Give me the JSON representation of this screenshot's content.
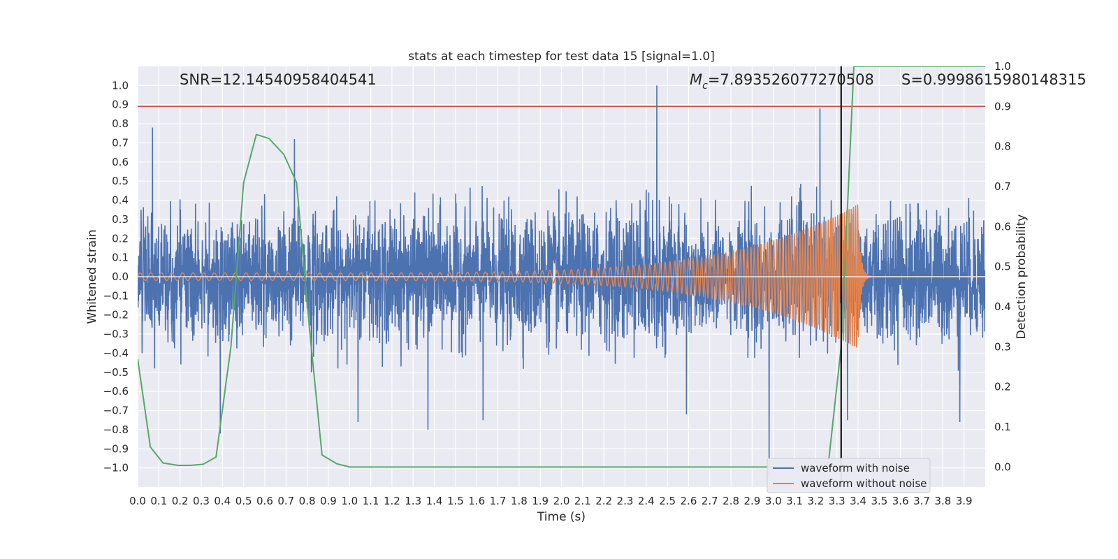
{
  "chart_data": {
    "type": "line",
    "title": "stats at each timestep for test data 15 [signal=1.0]",
    "xlabel": "Time (s)",
    "ylabel": "Whitened strain",
    "y2label": "Detection probability",
    "xlim": [
      0.0,
      4.0
    ],
    "ylim": [
      -1.1,
      1.1
    ],
    "y2lim": [
      -0.05,
      1.0
    ],
    "x_ticks": [
      0.0,
      0.1,
      0.2,
      0.3,
      0.4,
      0.5,
      0.6,
      0.7,
      0.8,
      0.9,
      1.0,
      1.1,
      1.2,
      1.3,
      1.4,
      1.5,
      1.6,
      1.7,
      1.8,
      1.9,
      2.0,
      2.1,
      2.2,
      2.3,
      2.4,
      2.5,
      2.6,
      2.7,
      2.8,
      2.9,
      3.0,
      3.1,
      3.2,
      3.3,
      3.4,
      3.5,
      3.6,
      3.7,
      3.8,
      3.9
    ],
    "y_ticks": [
      1.0,
      0.9,
      0.8,
      0.7,
      0.6,
      0.5,
      0.4,
      0.3,
      0.2,
      0.1,
      0.0,
      -0.1,
      -0.2,
      -0.3,
      -0.4,
      -0.5,
      -0.6,
      -0.7,
      -0.8,
      -0.9,
      -1.0
    ],
    "y2_ticks": [
      1.0,
      0.9,
      0.8,
      0.7,
      0.6,
      0.5,
      0.4,
      0.3,
      0.2,
      0.1,
      0.0
    ],
    "grid": true,
    "legend_position": "lower-right",
    "annotations": {
      "snr": "SNR=12.14540958404541",
      "mc_symbol": "M",
      "mc_sub": "c",
      "mc_value": "=7.893526077270508",
      "s": "S=0.9998615980148315"
    },
    "threshold": {
      "y2": 0.9,
      "color": "#c44e52"
    },
    "merger_time": 3.32,
    "series": [
      {
        "name": "waveform with noise",
        "color": "#4c72b0",
        "axis": "left",
        "style": "dense noise trace",
        "amplitude_envelope": 0.5,
        "spikes": [
          [
            0.07,
            0.78
          ],
          [
            0.39,
            -0.82
          ],
          [
            0.74,
            0.72
          ],
          [
            0.82,
            -0.5
          ],
          [
            1.04,
            -0.76
          ],
          [
            1.37,
            -0.8
          ],
          [
            1.63,
            -0.75
          ],
          [
            2.45,
            1.0
          ],
          [
            2.59,
            -0.72
          ],
          [
            2.98,
            -1.05
          ],
          [
            3.22,
            0.88
          ],
          [
            3.35,
            -0.75
          ],
          [
            3.88,
            -0.76
          ]
        ]
      },
      {
        "name": "waveform without noise",
        "color": "#dd8452",
        "axis": "left",
        "style": "chirp",
        "f_start_hz": 20,
        "f_end_hz": 100,
        "amp_start": 0.02,
        "amp_peak": 0.38,
        "peak_time": 3.4,
        "ringdown_end": 3.45
      },
      {
        "name": "detection probability",
        "color": "#55a868",
        "axis": "right",
        "x": [
          0.0,
          0.06,
          0.12,
          0.19,
          0.25,
          0.31,
          0.37,
          0.44,
          0.5,
          0.56,
          0.62,
          0.69,
          0.75,
          0.81,
          0.87,
          0.94,
          1.0,
          1.06,
          1.5,
          2.0,
          2.5,
          3.0,
          3.1,
          3.2,
          3.26,
          3.32,
          3.38,
          3.45,
          3.5,
          4.0
        ],
        "y": [
          0.27,
          0.05,
          0.01,
          0.004,
          0.004,
          0.007,
          0.025,
          0.3,
          0.71,
          0.83,
          0.82,
          0.78,
          0.71,
          0.35,
          0.03,
          0.008,
          0.0,
          0.0,
          0.0,
          0.0,
          0.0,
          0.0,
          0.0,
          0.0,
          0.01,
          0.3,
          1.0,
          1.0,
          1.0,
          1.0
        ]
      }
    ]
  }
}
